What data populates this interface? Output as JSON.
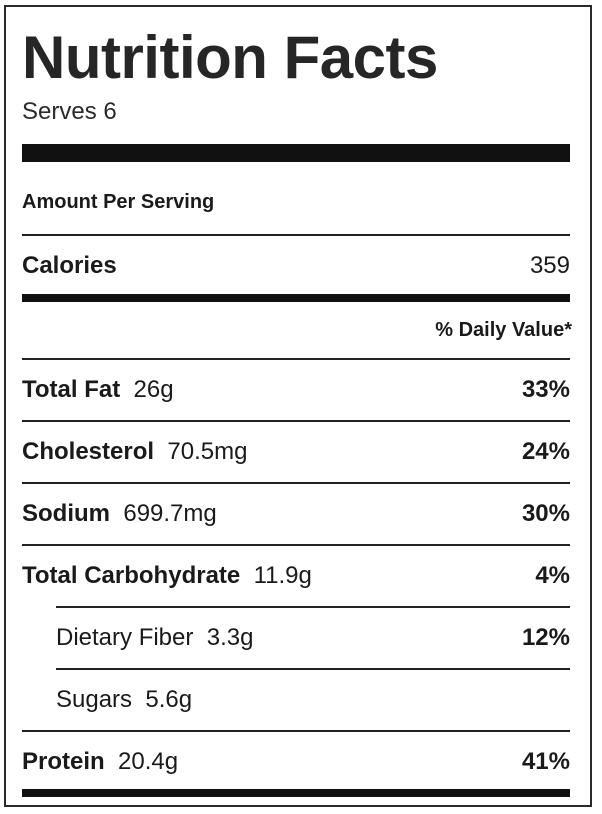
{
  "label": {
    "title": "Nutrition Facts",
    "serves": "Serves 6",
    "amount_per_serving": "Amount Per Serving",
    "calories": {
      "name": "Calories",
      "value": "359"
    },
    "daily_value_header": "% Daily Value*",
    "nutrients": [
      {
        "name": "Total Fat",
        "amount": "26g",
        "dv": "33%"
      },
      {
        "name": "Cholesterol",
        "amount": "70.5mg",
        "dv": "24%"
      },
      {
        "name": "Sodium",
        "amount": "699.7mg",
        "dv": "30%"
      },
      {
        "name": "Total Carbohydrate",
        "amount": "11.9g",
        "dv": "4%"
      },
      {
        "name": "Dietary Fiber",
        "amount": "3.3g",
        "dv": "12%"
      },
      {
        "name": "Sugars",
        "amount": "5.6g",
        "dv": ""
      },
      {
        "name": "Protein",
        "amount": "20.4g",
        "dv": "41%"
      }
    ]
  }
}
